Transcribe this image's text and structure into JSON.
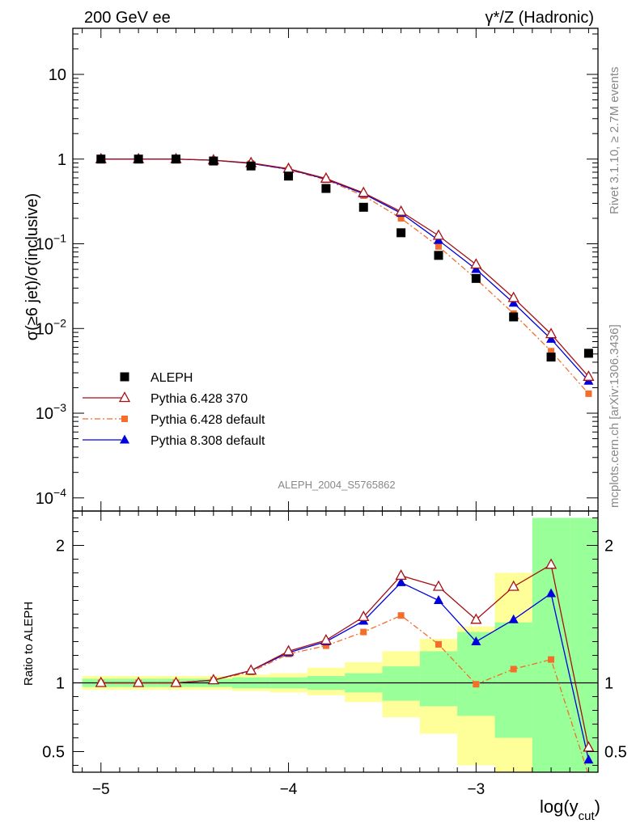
{
  "header": {
    "left": "200 GeV ee",
    "right": "γ*/Z (Hadronic)"
  },
  "side_labels": {
    "top": "Rivet 3.1.10, ≥ 2.7M events",
    "bottom": "mcplots.cern.ch [arXiv:1306.3436]"
  },
  "watermark": "ALEPH_2004_S5765862",
  "colors": {
    "aleph": "#000000",
    "py6_370": "#a50f15",
    "py6_default": "#f46d2a",
    "py8": "#0000dd",
    "band_outer": "#ffff99",
    "band_inner": "#99ff99"
  },
  "chart_data": [
    {
      "type": "scatter",
      "panel": "main",
      "ylabel": "σ(≥6 jet)/σ(inclusive)",
      "xlabel": "log(y_cut)",
      "yscale": "log",
      "xlim": [
        -5.15,
        -2.35
      ],
      "ylim": [
        7e-05,
        35
      ],
      "y_ticks": [
        {
          "v": 0.0001,
          "base": "10",
          "exp": "−4"
        },
        {
          "v": 0.001,
          "base": "10",
          "exp": "−3"
        },
        {
          "v": 0.01,
          "base": "10",
          "exp": "−2"
        },
        {
          "v": 0.1,
          "base": "10",
          "exp": "−1"
        },
        {
          "v": 1,
          "base": "1",
          "exp": ""
        },
        {
          "v": 10,
          "base": "10",
          "exp": ""
        }
      ],
      "x": [
        -5.0,
        -4.8,
        -4.6,
        -4.4,
        -4.2,
        -4.0,
        -3.8,
        -3.6,
        -3.4,
        -3.2,
        -3.0,
        -2.8,
        -2.6,
        -2.4
      ],
      "series": [
        {
          "name": "ALEPH",
          "marker": "square",
          "values": [
            1.0,
            1.0,
            1.0,
            0.95,
            0.83,
            0.63,
            0.45,
            0.27,
            0.135,
            0.073,
            0.039,
            0.0137,
            0.0046,
            0.0051
          ]
        },
        {
          "name": "Pythia 6.428 370",
          "marker": "triangle-open",
          "line": "solid",
          "values": [
            1.0,
            1.0,
            1.0,
            0.97,
            0.9,
            0.77,
            0.59,
            0.4,
            0.24,
            0.125,
            0.057,
            0.023,
            0.0086,
            0.0027
          ]
        },
        {
          "name": "Pythia 6.428 default",
          "marker": "square-small",
          "line": "dashdot",
          "values": [
            1.0,
            1.0,
            1.0,
            0.97,
            0.89,
            0.75,
            0.57,
            0.37,
            0.2,
            0.093,
            0.0385,
            0.015,
            0.0054,
            0.0017
          ]
        },
        {
          "name": "Pythia 8.308 default",
          "marker": "triangle",
          "line": "solid",
          "values": [
            1.0,
            1.0,
            1.0,
            0.97,
            0.89,
            0.76,
            0.58,
            0.39,
            0.23,
            0.11,
            0.05,
            0.02,
            0.0075,
            0.0024
          ]
        }
      ]
    },
    {
      "type": "line",
      "panel": "ratio",
      "ylabel": "Ratio to ALEPH",
      "xlabel": "log(y_cut)",
      "xlim": [
        -5.15,
        -2.35
      ],
      "ylim": [
        0.35,
        2.25
      ],
      "y_ticks": [
        0.5,
        1,
        2
      ],
      "x_ticks": [
        -5,
        -4,
        -3
      ],
      "x_tick_labels": [
        "−5",
        "−4",
        "−3"
      ],
      "bands": {
        "x_edges": [
          -5.1,
          -4.9,
          -4.7,
          -4.5,
          -4.3,
          -4.1,
          -3.9,
          -3.7,
          -3.5,
          -3.3,
          -3.1,
          -2.9,
          -2.7,
          -2.5,
          -2.3
        ],
        "outer": [
          [
            0.95,
            1.05
          ],
          [
            0.95,
            1.05
          ],
          [
            0.95,
            1.05
          ],
          [
            0.95,
            1.05
          ],
          [
            0.94,
            1.06
          ],
          [
            0.93,
            1.07
          ],
          [
            0.91,
            1.11
          ],
          [
            0.86,
            1.15
          ],
          [
            0.75,
            1.23
          ],
          [
            0.63,
            1.32
          ],
          [
            0.4,
            1.41
          ],
          [
            0.32,
            1.8
          ],
          [
            0.31,
            2.2
          ],
          [
            0.31,
            2.2
          ]
        ],
        "inner": [
          [
            0.97,
            1.03
          ],
          [
            0.97,
            1.03
          ],
          [
            0.97,
            1.03
          ],
          [
            0.97,
            1.03
          ],
          [
            0.96,
            1.04
          ],
          [
            0.96,
            1.04
          ],
          [
            0.95,
            1.05
          ],
          [
            0.93,
            1.07
          ],
          [
            0.87,
            1.12
          ],
          [
            0.83,
            1.23
          ],
          [
            0.76,
            1.37
          ],
          [
            0.6,
            1.44
          ],
          [
            0.1,
            2.2
          ],
          [
            0.1,
            2.2
          ]
        ]
      },
      "series": [
        {
          "name": "Pythia 6.428 370",
          "values": [
            1.0,
            1.0,
            1.0,
            1.02,
            1.09,
            1.23,
            1.31,
            1.48,
            1.78,
            1.7,
            1.46,
            1.7,
            1.86,
            0.53
          ]
        },
        {
          "name": "Pythia 6.428 default",
          "values": [
            1.0,
            1.0,
            1.0,
            1.02,
            1.08,
            1.21,
            1.27,
            1.37,
            1.49,
            1.28,
            0.99,
            1.1,
            1.17,
            0.33
          ]
        },
        {
          "name": "Pythia 8.308 default",
          "values": [
            1.0,
            1.0,
            1.0,
            1.02,
            1.09,
            1.22,
            1.3,
            1.45,
            1.73,
            1.6,
            1.3,
            1.46,
            1.65,
            0.44
          ]
        }
      ]
    }
  ]
}
